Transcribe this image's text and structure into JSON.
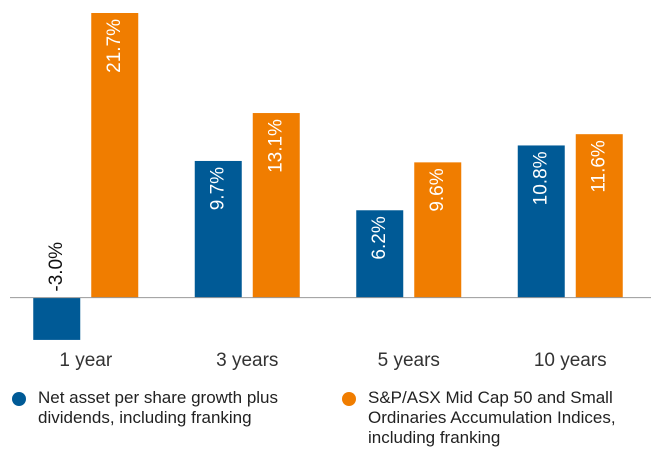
{
  "chart_data": {
    "type": "bar",
    "categories": [
      "1 year",
      "3 years",
      "5 years",
      "10 years"
    ],
    "series": [
      {
        "name": "Net asset per share growth plus dividends, including franking",
        "color": "#005a96",
        "values": [
          -3.0,
          9.7,
          6.2,
          10.8
        ],
        "value_labels": [
          "-3.0%",
          "9.7%",
          "6.2%",
          "10.8%"
        ]
      },
      {
        "name": "S&P/ASX Mid Cap 50 and Small Ordinaries Accumulation Indices, including franking",
        "color": "#f07d00",
        "values": [
          21.7,
          13.1,
          9.6,
          11.6
        ],
        "value_labels": [
          "21.7%",
          "13.1%",
          "9.6%",
          "11.6%"
        ]
      }
    ],
    "ylim": [
      -4,
      20.2
    ]
  }
}
